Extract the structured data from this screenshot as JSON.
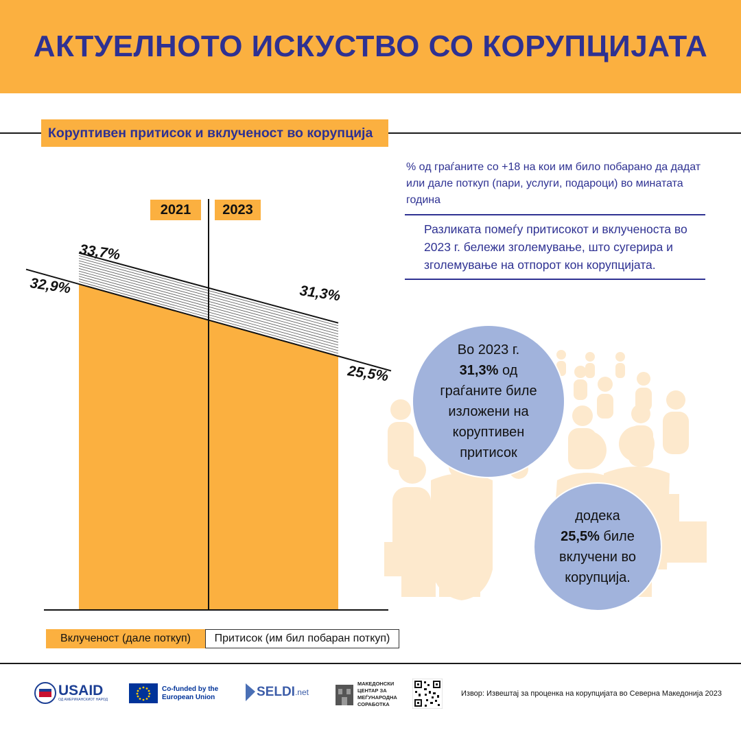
{
  "header": {
    "title": "АКТУЕЛНОТО ИСКУСТВО СО КОРУПЦИЈАТА"
  },
  "subtitle": "Коруптивен притисок и вклученост во корупција",
  "description": "% од граѓаните  со +18 на кои им било побарано да дадат или дале поткуп (пари, услуги, подароци) во минатата година",
  "note": "Разликата помеѓу притисокот и вклученоста во 2023 г. бележи зголемување, што сугерира и зголемување на отпорот кон корупцијата.",
  "chart_data": {
    "type": "area",
    "categories": [
      "2021",
      "2023"
    ],
    "series": [
      {
        "name": "Вклученост (дале поткуп)",
        "values": [
          32.9,
          25.5
        ],
        "labels": [
          "32,9%",
          "25,5%"
        ],
        "color": "#fbb040"
      },
      {
        "name": "Притисок (им бил побаран поткуп)",
        "values": [
          33.7,
          31.3
        ],
        "labels": [
          "33,7%",
          "31,3%"
        ],
        "color": "#ffffff"
      }
    ],
    "legend_position": "bottom"
  },
  "bubbles": {
    "b1": {
      "pre": "Во 2023 г.",
      "value": "31,3%",
      "post1": " од",
      "post2": "граѓаните биле изложени на коруптивен притисок"
    },
    "b2": {
      "pre": "додека",
      "value": "25,5%",
      "post1": " биле",
      "post2": "вклучени во корупција."
    }
  },
  "footer": {
    "usaid": "USAID",
    "usaid_sub": "ОД АМЕРИКАНСКИОТ НАРОД",
    "eu": "Co-funded by the European Union",
    "seldi": "SELDI",
    "seldi_suffix": ".net",
    "mcms": "МАКЕДОНСКИ ЦЕНТАР ЗА МЕЃУНАРОДНА СОРАБОТКА",
    "source": "Извор: Извештај за проценка на корупцијата во Северна Македонија 2023"
  },
  "colors": {
    "orange": "#fbb040",
    "navy": "#2e3192",
    "bubble": "#a1b3dc",
    "people": "#fde9cd"
  }
}
